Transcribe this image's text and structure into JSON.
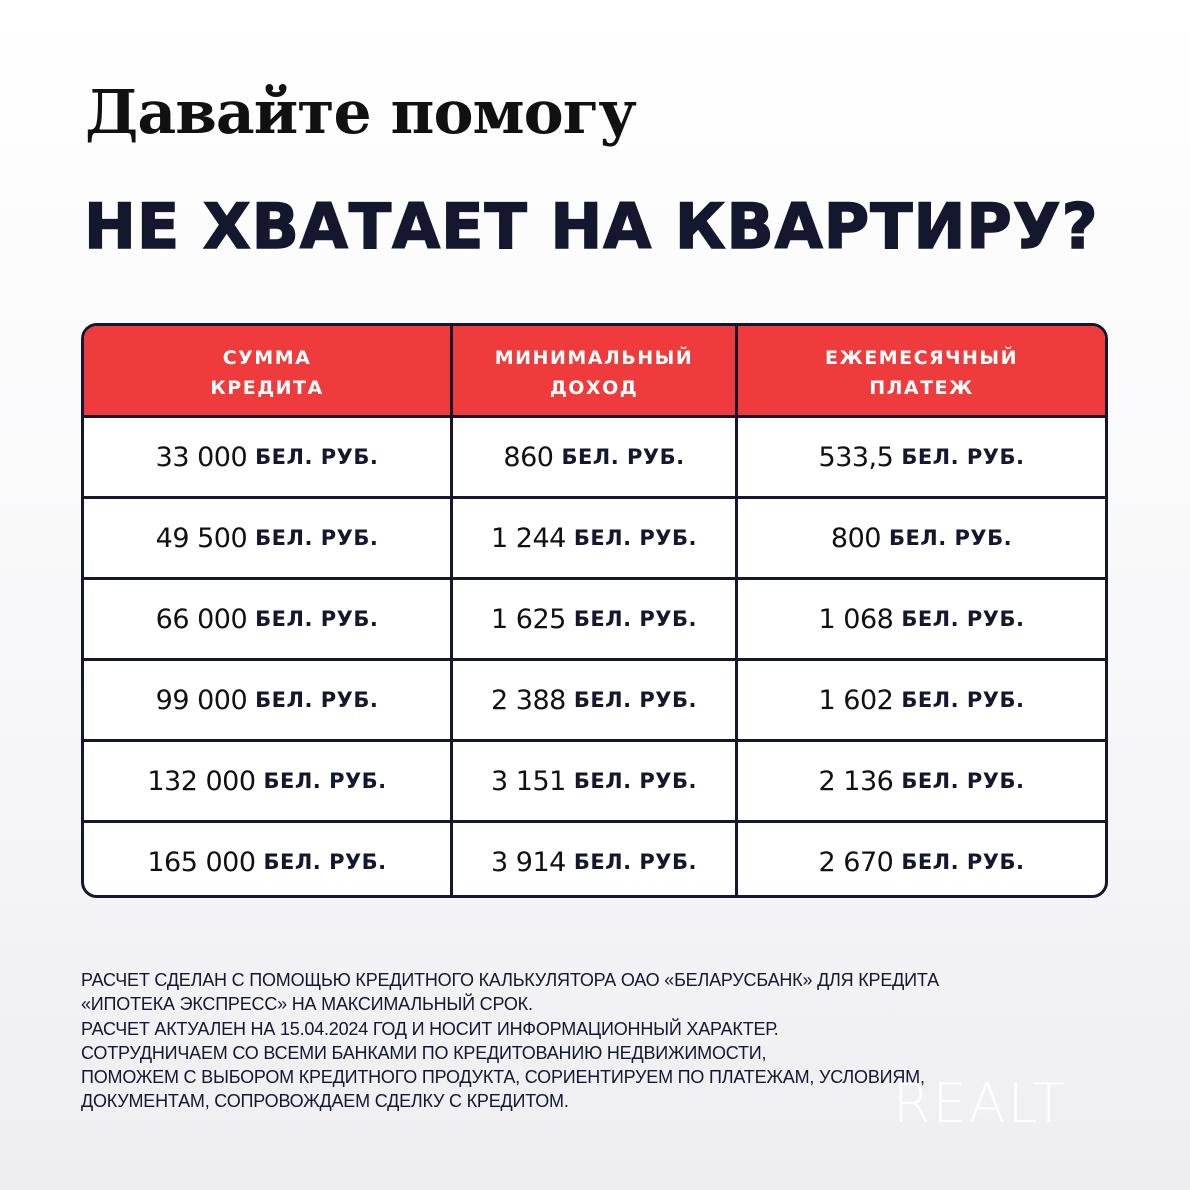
{
  "heading": {
    "line1": "Давайте помогу",
    "line2": "НЕ ХВАТАЕТ НА КВАРТИРУ?"
  },
  "table": {
    "headers": [
      "СУММА\nКРЕДИТА",
      "МИНИМАЛЬНЫЙ\nДОХОД",
      "ЕЖЕМЕСЯЧНЫЙ\nПЛАТЕЖ"
    ],
    "header_lines": [
      [
        "СУММА",
        "КРЕДИТА"
      ],
      [
        "МИНИМАЛЬНЫЙ",
        "ДОХОД"
      ],
      [
        "ЕЖЕМЕСЯЧНЫЙ",
        "ПЛАТЕЖ"
      ]
    ],
    "unit": "БЕЛ. РУБ.",
    "rows": [
      [
        "33 000",
        "860",
        "533,5"
      ],
      [
        "49 500",
        "1 244",
        "800"
      ],
      [
        "66 000",
        "1 625",
        "1 068"
      ],
      [
        "99 000",
        "2 388",
        "1 602"
      ],
      [
        "132 000",
        "3 151",
        "2 136"
      ],
      [
        "165 000",
        "3 914",
        "2 670"
      ]
    ]
  },
  "footer": [
    "РАСЧЕТ СДЕЛАН С ПОМОЩЬЮ КРЕДИТНОГО КАЛЬКУЛЯТОРА ОАО «БЕЛАРУСБАНК» ДЛЯ КРЕДИТА",
    "«ИПОТЕКА ЭКСПРЕСС» НА МАКСИМАЛЬНЫЙ СРОК.",
    "РАСЧЕТ АКТУАЛЕН НА 15.04.2024 ГОД И НОСИТ ИНФОРМАЦИОННЫЙ ХАРАКТЕР.",
    "СОТРУДНИЧАЕМ СО ВСЕМИ БАНКАМИ ПО КРЕДИТОВАНИЮ НЕДВИЖИМОСТИ,",
    "ПОМОЖЕМ С ВЫБОРОМ КРЕДИТНОГО ПРОДУКТА, СОРИЕНТИРУЕМ ПО ПЛАТЕЖАМ, УСЛОВИЯМ,",
    "ДОКУМЕНТАМ, СОПРОВОЖДАЕМ СДЕЛКУ С КРЕДИТОМ."
  ],
  "watermark": "REALT",
  "colors": {
    "header_red": "#ef3b3b",
    "navy": "#14172e"
  }
}
